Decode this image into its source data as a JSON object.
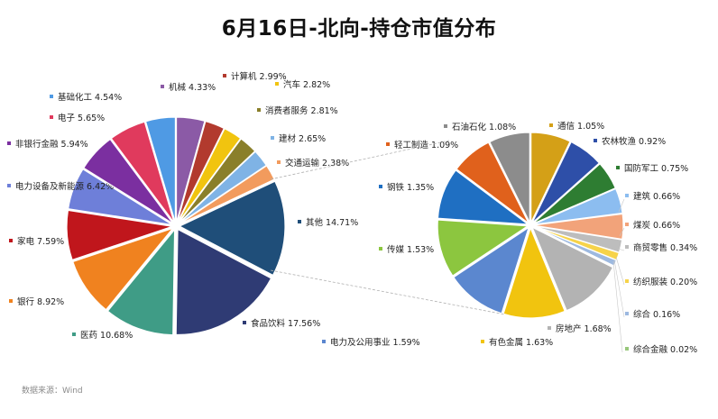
{
  "title": "6月16日-北向-持仓市值分布",
  "source": "数据来源：Wind",
  "chart_data": [
    {
      "type": "pie",
      "slices": [
        {
          "label": "机械",
          "value": 4.33,
          "color": "#8b5aa6"
        },
        {
          "label": "计算机",
          "value": 2.99,
          "color": "#b23a2e"
        },
        {
          "label": "汽车",
          "value": 2.82,
          "color": "#f1c40f"
        },
        {
          "label": "消费者服务",
          "value": 2.81,
          "color": "#8a7f2a"
        },
        {
          "label": "建材",
          "value": 2.65,
          "color": "#7fb3e5"
        },
        {
          "label": "交通运输",
          "value": 2.38,
          "color": "#f29b5d"
        },
        {
          "label": "其他",
          "value": 14.71,
          "color": "#1f4e79"
        },
        {
          "label": "食品饮料",
          "value": 17.56,
          "color": "#2f3b74"
        },
        {
          "label": "医药",
          "value": 10.68,
          "color": "#3f9c86"
        },
        {
          "label": "银行",
          "value": 8.92,
          "color": "#f0821f"
        },
        {
          "label": "家电",
          "value": 7.59,
          "color": "#c0161c"
        },
        {
          "label": "电力设备及新能源",
          "value": 6.42,
          "color": "#6e7fd9"
        },
        {
          "label": "非银行金融",
          "value": 5.94,
          "color": "#7b2fa0"
        },
        {
          "label": "电子",
          "value": 5.65,
          "color": "#e03a5d"
        },
        {
          "label": "基础化工",
          "value": 4.54,
          "color": "#4f9ae4"
        }
      ]
    },
    {
      "type": "pie",
      "slices": [
        {
          "label": "通信",
          "value": 1.05,
          "color": "#d4a017"
        },
        {
          "label": "农林牧渔",
          "value": 0.92,
          "color": "#2e4fa8"
        },
        {
          "label": "国防军工",
          "value": 0.75,
          "color": "#2e7d32"
        },
        {
          "label": "建筑",
          "value": 0.66,
          "color": "#8cbdf0"
        },
        {
          "label": "煤炭",
          "value": 0.66,
          "color": "#f2a37a"
        },
        {
          "label": "商贸零售",
          "value": 0.34,
          "color": "#bdbdbd"
        },
        {
          "label": "纺织服装",
          "value": 0.2,
          "color": "#f6d34a"
        },
        {
          "label": "综合",
          "value": 0.16,
          "color": "#9db9e0"
        },
        {
          "label": "综合金融",
          "value": 0.02,
          "color": "#98c77b"
        },
        {
          "label": "房地产",
          "value": 1.68,
          "color": "#b3b3b3"
        },
        {
          "label": "有色金属",
          "value": 1.63,
          "color": "#f1c40f"
        },
        {
          "label": "电力及公用事业",
          "value": 1.59,
          "color": "#5b87cf"
        },
        {
          "label": "传媒",
          "value": 1.53,
          "color": "#8cc63f"
        },
        {
          "label": "钢铁",
          "value": 1.35,
          "color": "#1f6fc2"
        },
        {
          "label": "轻工制造",
          "value": 1.09,
          "color": "#e0611c"
        },
        {
          "label": "石油石化",
          "value": 1.08,
          "color": "#8c8c8c"
        }
      ]
    }
  ]
}
